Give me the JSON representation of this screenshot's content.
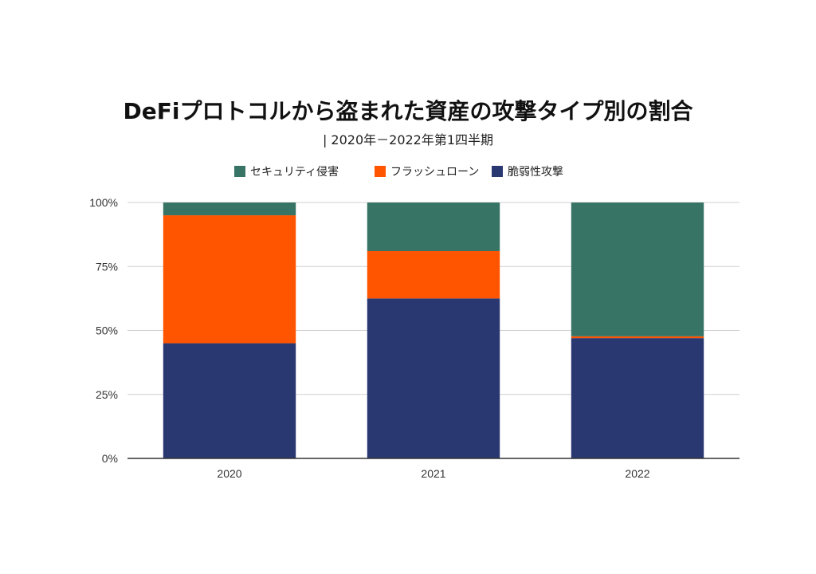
{
  "chart_data": {
    "type": "bar",
    "stacked": true,
    "title": "DeFiプロトコルから盗まれた資産の攻撃タイプ別の割合",
    "subtitle": "| 2020年－2022年第1四半期",
    "categories": [
      "2020",
      "2021",
      "2022"
    ],
    "series": [
      {
        "name": "脆弱性攻撃",
        "color": "#2a3872",
        "values": [
          45,
          62.5,
          47
        ]
      },
      {
        "name": "フラッシュローン",
        "color": "#ff5500",
        "values": [
          50,
          18.5,
          0.7
        ]
      },
      {
        "name": "セキュリティ侵害",
        "color": "#387466",
        "values": [
          5,
          19,
          52.3
        ]
      }
    ],
    "legend_order": [
      "セキュリティ侵害",
      "フラッシュローン",
      "脆弱性攻撃"
    ],
    "legend_placement": "top",
    "ylim": [
      0,
      100
    ],
    "yticks": [
      "0%",
      "25%",
      "50%",
      "75%",
      "100%"
    ],
    "ytick_values": [
      0,
      25,
      50,
      75,
      100
    ],
    "grid": true,
    "xlabel": "",
    "ylabel": ""
  }
}
